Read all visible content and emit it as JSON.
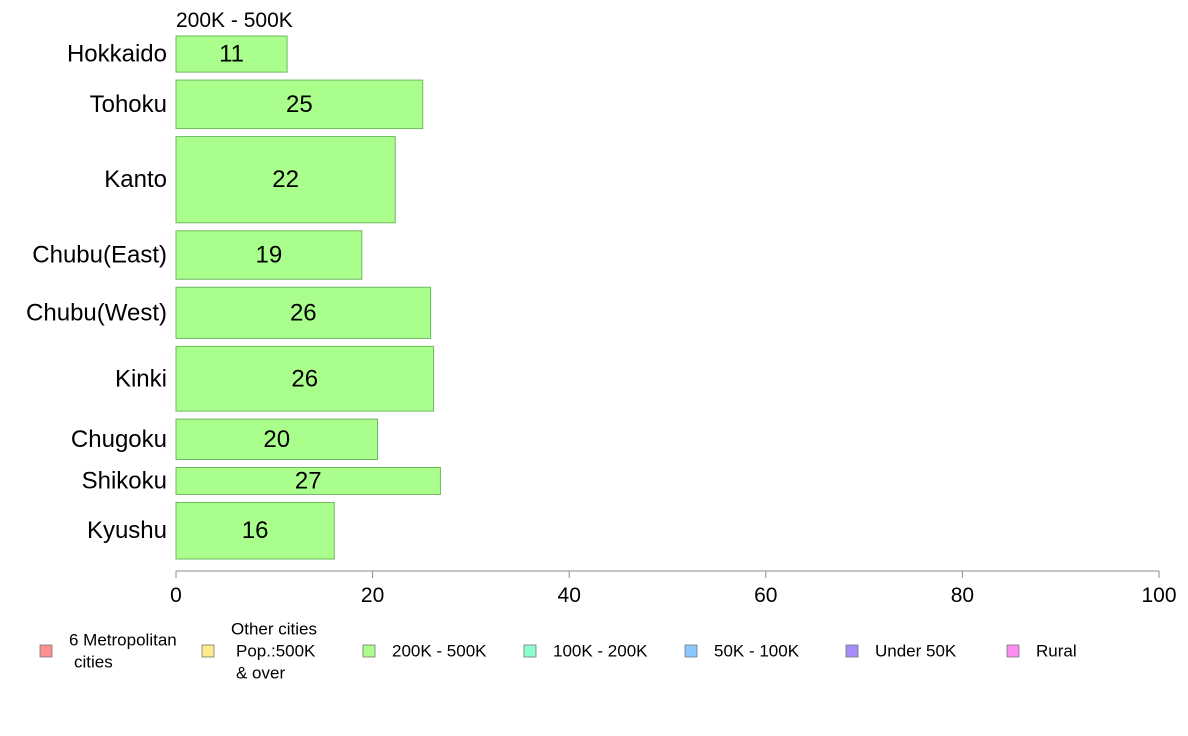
{
  "chart_data": {
    "type": "bar",
    "orientation": "horizontal",
    "title": "200K - 500K",
    "xlabel": "",
    "ylabel": "",
    "xlim": [
      0,
      100
    ],
    "xticks": [
      0,
      20,
      40,
      60,
      80,
      100
    ],
    "grid": false,
    "legend_position": "bottom",
    "categories": [
      "Hokkaido",
      "Tohoku",
      "Kanto",
      "Chubu(East)",
      "Chubu(West)",
      "Kinki",
      "Chugoku",
      "Shikoku",
      "Kyushu"
    ],
    "bar_widths_relative": [
      0.67,
      0.9,
      1.6,
      0.9,
      0.95,
      1.2,
      0.75,
      0.5,
      1.05
    ],
    "series": [
      {
        "name": "200K - 500K",
        "color": "#aaff8c",
        "values": [
          11.3,
          25.1,
          22.3,
          18.9,
          25.9,
          26.2,
          20.5,
          26.9,
          16.1
        ],
        "value_labels": [
          "11",
          "25",
          "22",
          "19",
          "26",
          "26",
          "20",
          "27",
          "16"
        ]
      }
    ],
    "legend": [
      {
        "label": "6 Metropolitan\ncities",
        "color": "#ff8f8f"
      },
      {
        "label": "Other cities\nPop.:500K\n& over",
        "color": "#ffe98c"
      },
      {
        "label": "200K - 500K",
        "color": "#aaff8c"
      },
      {
        "label": "100K - 200K",
        "color": "#8cffce"
      },
      {
        "label": "50K - 100K",
        "color": "#8cc8ff"
      },
      {
        "label": "Under 50K",
        "color": "#a88cff"
      },
      {
        "label": "Rural",
        "color": "#ff8cf0"
      }
    ]
  }
}
